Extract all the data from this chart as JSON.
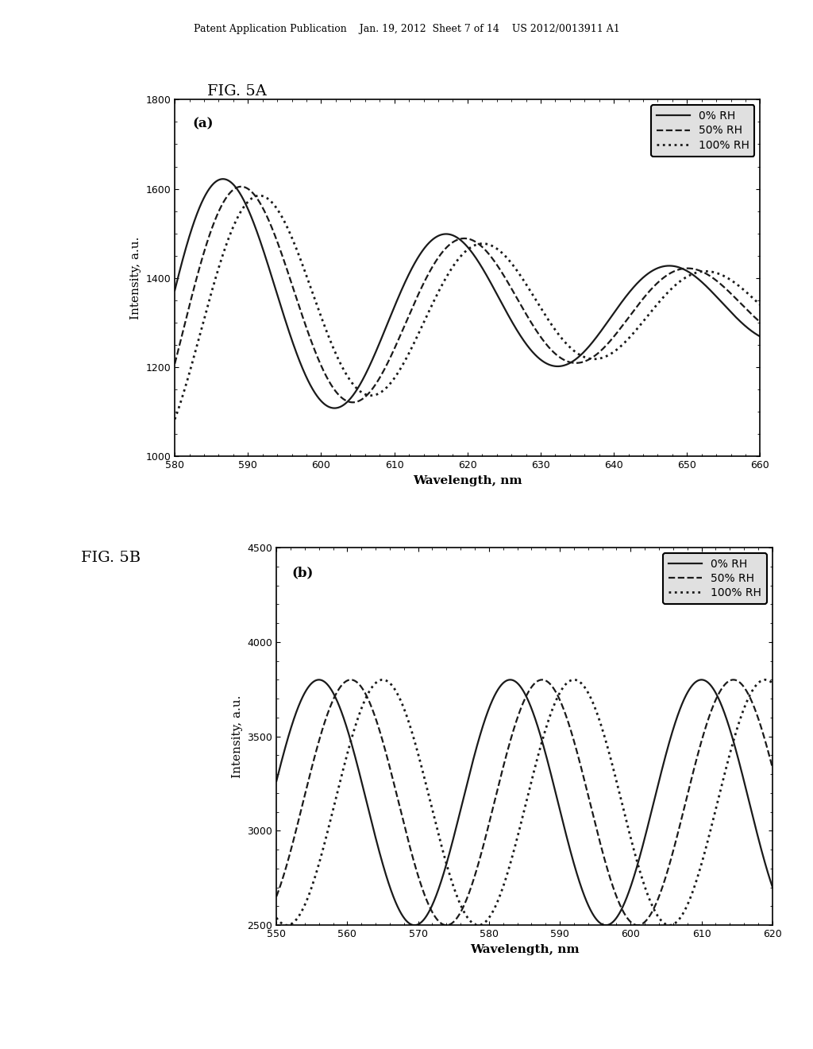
{
  "fig_a": {
    "label": "(a)",
    "xlabel": "Wavelength, nm",
    "ylabel": "Intensity, a.u.",
    "xlim": [
      580,
      660
    ],
    "ylim": [
      1000,
      1800
    ],
    "xticks": [
      580,
      590,
      600,
      610,
      620,
      630,
      640,
      650,
      660
    ],
    "yticks": [
      1000,
      1200,
      1400,
      1600,
      1800
    ],
    "series": [
      {
        "label": "0% RH",
        "linestyle": "solid",
        "phase_shift": 0.0,
        "amplitude": 330,
        "baseline": 1330,
        "period": 30.5,
        "peak0": 587.0,
        "envelope_decay": 0.018
      },
      {
        "label": "50% RH",
        "linestyle": "dashed",
        "phase_shift": 2.5,
        "amplitude": 325,
        "baseline": 1330,
        "period": 30.5,
        "peak0": 587.0,
        "envelope_decay": 0.018
      },
      {
        "label": "100% RH",
        "linestyle": "dotted",
        "phase_shift": 5.0,
        "amplitude": 315,
        "baseline": 1330,
        "period": 30.5,
        "peak0": 587.0,
        "envelope_decay": 0.018
      }
    ]
  },
  "fig_b": {
    "label": "(b)",
    "xlabel": "Wavelength, nm",
    "ylabel": "Intensity, a.u.",
    "xlim": [
      550,
      620
    ],
    "ylim": [
      2500,
      4500
    ],
    "xticks": [
      550,
      560,
      570,
      580,
      590,
      600,
      610,
      620
    ],
    "yticks": [
      2500,
      3000,
      3500,
      4000,
      4500
    ],
    "series": [
      {
        "label": "0% RH",
        "linestyle": "solid",
        "phase_shift": 0.0,
        "amplitude": 650,
        "baseline": 3150,
        "period": 27.0,
        "peak0": 556.0,
        "envelope_decay": 0.0
      },
      {
        "label": "50% RH",
        "linestyle": "dashed",
        "phase_shift": 4.5,
        "amplitude": 650,
        "baseline": 3150,
        "period": 27.0,
        "peak0": 556.0,
        "envelope_decay": 0.0
      },
      {
        "label": "100% RH",
        "linestyle": "dotted",
        "phase_shift": 9.0,
        "amplitude": 650,
        "baseline": 3150,
        "period": 27.0,
        "peak0": 556.0,
        "envelope_decay": 0.0
      }
    ]
  },
  "header_text": "Patent Application Publication    Jan. 19, 2012  Sheet 7 of 14    US 2012/0013911 A1",
  "fig5a_label": "FIG. 5A",
  "fig5b_label": "FIG. 5B",
  "bg_color": "#ffffff",
  "line_color": "#1a1a1a"
}
